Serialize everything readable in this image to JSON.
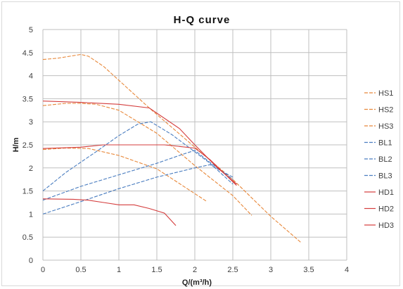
{
  "chart_data": {
    "type": "line",
    "title": "H-Q  curve",
    "xlabel": "Q/(m³/h)",
    "ylabel": "H/m",
    "xlim": [
      0,
      4
    ],
    "ylim": [
      0,
      5
    ],
    "xticks": [
      "0",
      "0.5",
      "1",
      "1.5",
      "2",
      "2.5",
      "3",
      "3.5",
      "4"
    ],
    "yticks": [
      "0",
      "0.5",
      "1",
      "1.5",
      "2",
      "2.5",
      "3",
      "3.5",
      "4",
      "4.5",
      "5"
    ],
    "grid": "both",
    "legend_position": "right",
    "series": [
      {
        "name": "HS1",
        "color": "#e8883a",
        "style": "dashed",
        "x": [
          0,
          0.2,
          0.5,
          0.6,
          0.8,
          1.0,
          1.4,
          2.0,
          2.5,
          3.0,
          3.4
        ],
        "y": [
          4.35,
          4.38,
          4.46,
          4.42,
          4.2,
          3.9,
          3.3,
          2.45,
          1.75,
          0.95,
          0.38
        ]
      },
      {
        "name": "HS2",
        "color": "#e8883a",
        "style": "dashed",
        "x": [
          0,
          0.3,
          0.5,
          0.7,
          1.0,
          1.5,
          2.0,
          2.5,
          2.75
        ],
        "y": [
          3.35,
          3.4,
          3.4,
          3.38,
          3.25,
          2.75,
          2.05,
          1.4,
          0.97
        ]
      },
      {
        "name": "HS3",
        "color": "#e8883a",
        "style": "dashed",
        "x": [
          0,
          0.3,
          0.6,
          1.0,
          1.5,
          1.9,
          2.15
        ],
        "y": [
          2.4,
          2.43,
          2.42,
          2.27,
          1.98,
          1.55,
          1.28
        ]
      },
      {
        "name": "BL1",
        "color": "#4a7dc0",
        "style": "dashed",
        "x": [
          0,
          0.3,
          0.7,
          1.0,
          1.25,
          1.42,
          1.7,
          2.2,
          2.5
        ],
        "y": [
          1.5,
          1.9,
          2.35,
          2.7,
          2.95,
          3.0,
          2.72,
          2.1,
          1.65
        ]
      },
      {
        "name": "BL2",
        "color": "#4a7dc0",
        "style": "dashed",
        "x": [
          0,
          0.5,
          1.0,
          1.5,
          1.85,
          2.0,
          2.2,
          2.5
        ],
        "y": [
          1.3,
          1.6,
          1.85,
          2.1,
          2.3,
          2.38,
          2.12,
          1.75
        ]
      },
      {
        "name": "BL3",
        "color": "#4a7dc0",
        "style": "dashed",
        "x": [
          0,
          0.5,
          1.0,
          1.5,
          2.0,
          2.2,
          2.5
        ],
        "y": [
          1.0,
          1.27,
          1.55,
          1.8,
          2.0,
          2.07,
          1.8
        ]
      },
      {
        "name": "HD1",
        "color": "#d43d3d",
        "style": "solid",
        "x": [
          0,
          0.5,
          1.0,
          1.4,
          1.8,
          2.0,
          2.3,
          2.55
        ],
        "y": [
          3.45,
          3.42,
          3.38,
          3.3,
          2.85,
          2.5,
          2.0,
          1.65
        ]
      },
      {
        "name": "HD2",
        "color": "#d43d3d",
        "style": "solid",
        "x": [
          0,
          0.5,
          0.8,
          1.2,
          1.6,
          2.0,
          2.2,
          2.55
        ],
        "y": [
          2.42,
          2.45,
          2.5,
          2.5,
          2.5,
          2.43,
          2.18,
          1.62
        ]
      },
      {
        "name": "HD3",
        "color": "#d43d3d",
        "style": "solid",
        "x": [
          0,
          0.4,
          0.6,
          0.8,
          1.0,
          1.2,
          1.4,
          1.6,
          1.75
        ],
        "y": [
          1.33,
          1.32,
          1.3,
          1.25,
          1.2,
          1.2,
          1.12,
          1.02,
          0.75
        ]
      }
    ],
    "legend_labels": [
      "HS1",
      "HS2",
      "HS3",
      "BL1",
      "BL2",
      "BL3",
      "HD1",
      "HD2",
      "HD3"
    ]
  }
}
